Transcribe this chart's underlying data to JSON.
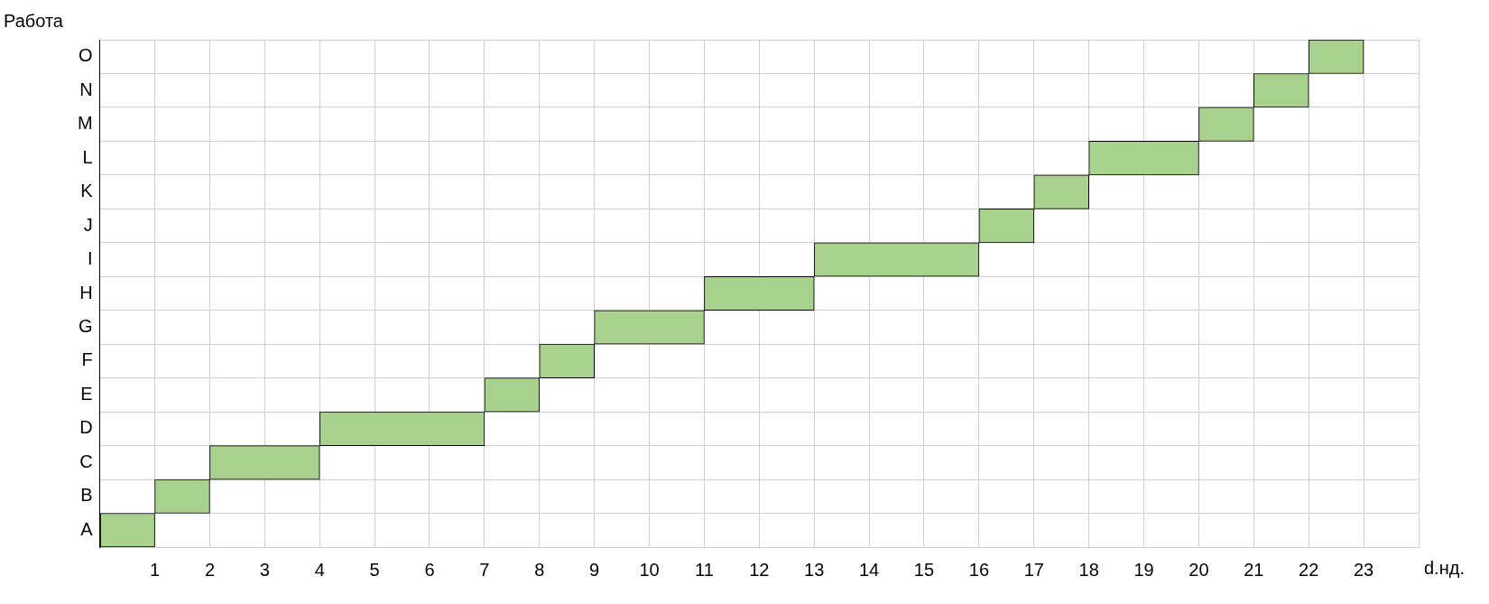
{
  "chart_data": {
    "type": "bar",
    "orientation": "horizontal",
    "ylabel": "Работа",
    "xlabel": "d.нд.",
    "categories": [
      "O",
      "N",
      "M",
      "L",
      "K",
      "J",
      "I",
      "H",
      "G",
      "F",
      "E",
      "D",
      "C",
      "B",
      "A"
    ],
    "base": [
      22,
      21,
      20,
      18,
      17,
      16,
      13,
      11,
      9,
      8,
      7,
      4,
      2,
      1,
      0
    ],
    "values": [
      1,
      1,
      1,
      2,
      1,
      1,
      3,
      2,
      2,
      1,
      1,
      3,
      2,
      1,
      1
    ],
    "color": "#a9d18e",
    "xlim": [
      0,
      24
    ],
    "xticks": [
      {
        "value": 0,
        "label": null
      },
      1,
      2,
      3,
      4,
      5,
      6,
      7,
      8,
      9,
      10,
      11,
      12,
      13,
      14,
      15,
      16,
      17,
      18,
      19,
      20,
      21,
      22,
      23,
      {
        "value": 24,
        "label": null
      }
    ],
    "grid": true,
    "legend": false
  }
}
